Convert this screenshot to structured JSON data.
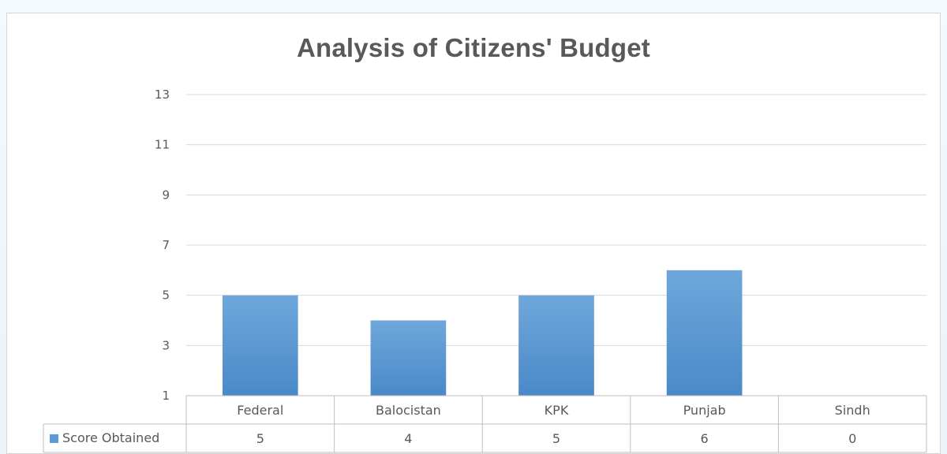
{
  "chart_data": {
    "type": "bar",
    "title": "Analysis of Citizens' Budget",
    "xlabel": "",
    "ylabel": "",
    "categories": [
      "Federal",
      "Balocistan",
      "KPK",
      "Punjab",
      "Sindh"
    ],
    "series": [
      {
        "name": "Score Obtained",
        "values": [
          5,
          4,
          5,
          6,
          0
        ],
        "color": "#5b9bd5"
      }
    ],
    "ylim": [
      1,
      13
    ],
    "yticks": [
      "1",
      "3",
      "5",
      "7",
      "9",
      "11",
      "13"
    ],
    "grid": true,
    "data_table": true
  }
}
